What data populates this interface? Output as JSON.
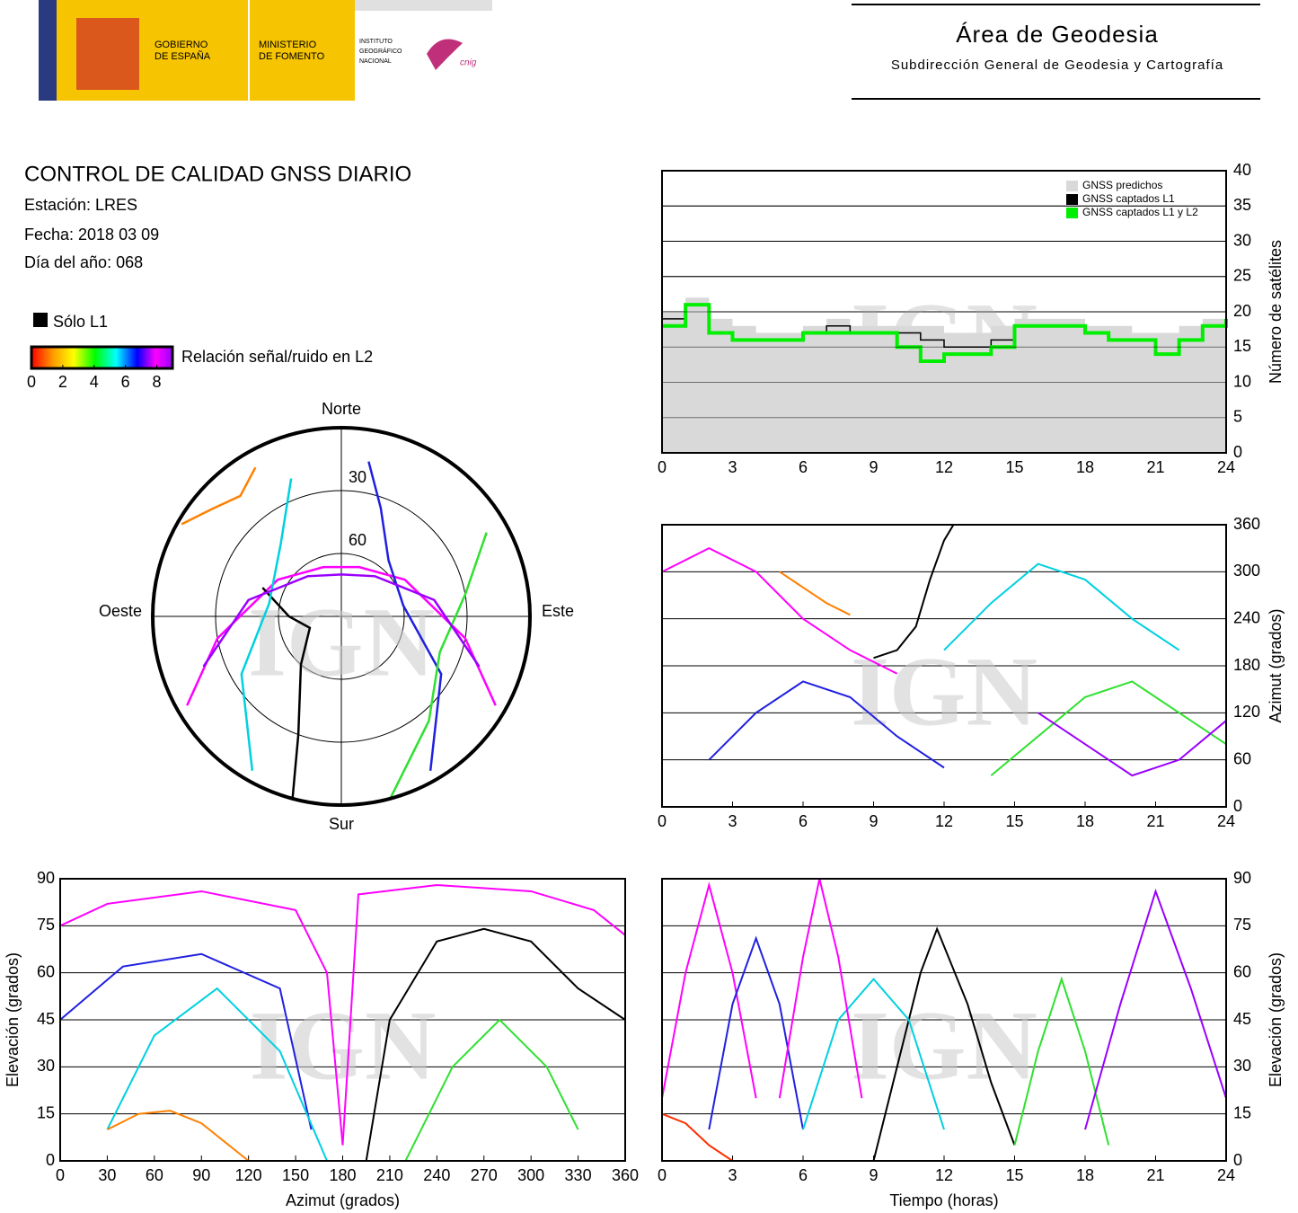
{
  "header": {
    "gobierno": [
      "GOBIERNO",
      "DE ESPAÑA"
    ],
    "ministerio": [
      "MINISTERIO",
      "DE FOMENTO"
    ],
    "instituto": [
      "INSTITUTO",
      "GEOGRÁFICO",
      "NACIONAL"
    ],
    "cnig": "cnig",
    "area": "Área de Geodesia",
    "subdireccion": "Subdirección General de Geodesia y Cartografía"
  },
  "report": {
    "title": "CONTROL DE CALIDAD GNSS DIARIO",
    "station": "Estación: LRES",
    "date": "Fecha: 2018 03 09",
    "doy": "Día del año: 068",
    "l1_only": "Sólo L1",
    "colorbar_label": "Relación señal/ruido en L2",
    "colorbar_range": [
      0,
      9
    ],
    "colorbar_ticks": [
      0,
      2,
      4,
      6,
      8
    ]
  },
  "watermark": "IGN",
  "chart_data": [
    {
      "type": "polar",
      "directions": {
        "north": "Norte",
        "south": "Sur",
        "east": "Este",
        "west": "Oeste"
      },
      "rings": [
        30,
        60
      ],
      "series": [
        {
          "color": "#ff00ff",
          "azimuth": [
            120,
            100,
            60,
            20,
            340,
            300,
            260,
            240
          ],
          "elevation": [
            5,
            30,
            55,
            65,
            65,
            55,
            30,
            5
          ]
        },
        {
          "color": "#000000",
          "azimuth": [
            195,
            200,
            220,
            250,
            270,
            290
          ],
          "elevation": [
            0,
            30,
            60,
            74,
            65,
            50
          ]
        },
        {
          "color": "#2020e0",
          "azimuth": [
            150,
            120,
            80,
            40,
            20,
            10
          ],
          "elevation": [
            5,
            35,
            60,
            55,
            35,
            15
          ]
        },
        {
          "color": "#00d0e0",
          "azimuth": [
            210,
            240,
            280,
            320,
            340
          ],
          "elevation": [
            5,
            35,
            55,
            45,
            20
          ]
        },
        {
          "color": "#30e030",
          "azimuth": [
            165,
            140,
            110,
            80,
            60
          ],
          "elevation": [
            0,
            25,
            40,
            30,
            10
          ]
        },
        {
          "color": "#ff8000",
          "azimuth": [
            300,
            310,
            320,
            330
          ],
          "elevation": [
            2,
            10,
            15,
            8
          ]
        },
        {
          "color": "#9900ff",
          "azimuth": [
            250,
            280,
            320,
            0,
            40,
            80,
            110
          ],
          "elevation": [
            20,
            45,
            65,
            70,
            65,
            45,
            20
          ]
        }
      ]
    },
    {
      "type": "step",
      "y_label": "Número de satélites",
      "x": [
        0,
        1,
        2,
        3,
        4,
        5,
        6,
        7,
        8,
        9,
        10,
        11,
        12,
        13,
        14,
        15,
        16,
        17,
        18,
        19,
        20,
        21,
        22,
        23,
        24
      ],
      "xlim": [
        0,
        24
      ],
      "xticks": [
        0,
        3,
        6,
        9,
        12,
        15,
        18,
        21,
        24
      ],
      "ylim": [
        0,
        40
      ],
      "yticks": [
        0,
        5,
        10,
        15,
        20,
        25,
        30,
        35,
        40
      ],
      "grid": true,
      "yaxis_side": "right",
      "legend": "top-right",
      "series": [
        {
          "name": "GNSS predichos",
          "color": "#d9d9d9",
          "fill": true,
          "values": [
            20,
            22,
            19,
            18,
            17,
            17,
            18,
            19,
            18,
            18,
            18,
            18,
            17,
            17,
            18,
            19,
            19,
            19,
            18,
            18,
            17,
            17,
            18,
            19,
            21
          ]
        },
        {
          "name": "GNSS captados L1",
          "color": "#000000",
          "values": [
            19,
            21,
            17,
            16,
            16,
            16,
            17,
            18,
            17,
            17,
            17,
            16,
            15,
            15,
            16,
            18,
            18,
            18,
            17,
            16,
            16,
            14,
            16,
            18,
            20
          ]
        },
        {
          "name": "GNSS captados L1 y L2",
          "color": "#00ee00",
          "values": [
            18,
            21,
            17,
            16,
            16,
            16,
            17,
            17,
            17,
            17,
            15,
            13,
            14,
            14,
            15,
            18,
            18,
            18,
            17,
            16,
            16,
            14,
            16,
            18,
            19
          ]
        }
      ]
    },
    {
      "type": "line",
      "y_label": "Azimut (grados)",
      "xlim": [
        0,
        24
      ],
      "xticks": [
        0,
        3,
        6,
        9,
        12,
        15,
        18,
        21,
        24
      ],
      "ylim": [
        0,
        360
      ],
      "yticks": [
        0,
        60,
        120,
        180,
        240,
        300,
        360
      ],
      "grid": true,
      "yaxis_side": "right",
      "series": [
        {
          "color": "#000000",
          "x": [
            9,
            10,
            10.8,
            11.4,
            12,
            12.4
          ],
          "values": [
            190,
            200,
            230,
            290,
            340,
            360
          ]
        },
        {
          "color": "#ff00ff",
          "x": [
            0,
            2,
            4,
            6,
            8,
            10
          ],
          "values": [
            300,
            330,
            300,
            240,
            200,
            170
          ]
        },
        {
          "color": "#2020e0",
          "x": [
            2,
            4,
            6,
            8,
            10,
            12
          ],
          "values": [
            60,
            120,
            160,
            140,
            90,
            50
          ]
        },
        {
          "color": "#00d0e0",
          "x": [
            12,
            14,
            16,
            18,
            20,
            22
          ],
          "values": [
            200,
            260,
            310,
            290,
            240,
            200
          ]
        },
        {
          "color": "#30e030",
          "x": [
            14,
            16,
            18,
            20,
            22,
            24
          ],
          "values": [
            40,
            90,
            140,
            160,
            120,
            80
          ]
        },
        {
          "color": "#9900ff",
          "x": [
            16,
            18,
            20,
            22,
            24
          ],
          "values": [
            120,
            80,
            40,
            60,
            110
          ]
        },
        {
          "color": "#ff8000",
          "x": [
            5,
            6,
            7,
            8
          ],
          "values": [
            300,
            280,
            260,
            245
          ]
        }
      ]
    },
    {
      "type": "line",
      "x_label": "Azimut (grados)",
      "y_label": "Elevación (grados)",
      "xlim": [
        0,
        360
      ],
      "xticks": [
        0,
        30,
        60,
        90,
        120,
        150,
        180,
        210,
        240,
        270,
        300,
        330,
        360
      ],
      "ylim": [
        0,
        90
      ],
      "yticks": [
        0,
        15,
        30,
        45,
        60,
        75,
        90
      ],
      "grid": true,
      "yaxis_side": "left",
      "series": [
        {
          "color": "#000000",
          "x": [
            195,
            210,
            240,
            270,
            300,
            330,
            360
          ],
          "values": [
            0,
            45,
            70,
            74,
            70,
            55,
            45
          ]
        },
        {
          "color": "#ff00ff",
          "x": [
            0,
            30,
            90,
            150,
            170,
            180
          ],
          "values": [
            75,
            82,
            86,
            80,
            60,
            5
          ]
        },
        {
          "color": "#ff00ff",
          "x": [
            180,
            190,
            240,
            300,
            340,
            360
          ],
          "values": [
            5,
            85,
            88,
            86,
            80,
            72
          ]
        },
        {
          "color": "#2020e0",
          "x": [
            0,
            40,
            90,
            140,
            160
          ],
          "values": [
            45,
            62,
            66,
            55,
            10
          ]
        },
        {
          "color": "#00d0e0",
          "x": [
            30,
            60,
            100,
            140,
            170
          ],
          "values": [
            10,
            40,
            55,
            35,
            0
          ]
        },
        {
          "color": "#30e030",
          "x": [
            220,
            250,
            280,
            310,
            330
          ],
          "values": [
            0,
            30,
            45,
            30,
            10
          ]
        },
        {
          "color": "#ff8000",
          "x": [
            30,
            50,
            70,
            90,
            120
          ],
          "values": [
            10,
            15,
            16,
            12,
            0
          ]
        }
      ]
    },
    {
      "type": "line",
      "x_label": "Tiempo (horas)",
      "y_label": "Elevación (grados)",
      "xlim": [
        0,
        24
      ],
      "xticks": [
        0,
        3,
        6,
        9,
        12,
        15,
        18,
        21,
        24
      ],
      "ylim": [
        0,
        90
      ],
      "yticks": [
        0,
        15,
        30,
        45,
        60,
        75,
        90
      ],
      "grid": true,
      "yaxis_side": "right",
      "series": [
        {
          "color": "#ff00ff",
          "x": [
            0,
            1,
            2,
            3,
            4
          ],
          "values": [
            20,
            60,
            88,
            60,
            20
          ]
        },
        {
          "color": "#000000",
          "x": [
            9,
            10,
            11,
            11.7,
            13,
            14,
            15
          ],
          "values": [
            0,
            30,
            60,
            74,
            50,
            25,
            5
          ]
        },
        {
          "color": "#2020e0",
          "x": [
            2,
            3,
            4,
            5,
            6
          ],
          "values": [
            10,
            50,
            71,
            50,
            10
          ]
        },
        {
          "color": "#30e030",
          "x": [
            15,
            16,
            17,
            18,
            19
          ],
          "values": [
            5,
            35,
            58,
            35,
            5
          ]
        },
        {
          "color": "#9900ff",
          "x": [
            18,
            19.5,
            21,
            22.5,
            24
          ],
          "values": [
            10,
            50,
            86,
            55,
            20
          ]
        },
        {
          "color": "#00d0e0",
          "x": [
            6,
            7.5,
            9,
            10.5,
            12
          ],
          "values": [
            10,
            45,
            58,
            45,
            10
          ]
        },
        {
          "color": "#ff3000",
          "x": [
            0,
            1,
            2,
            3
          ],
          "values": [
            15,
            12,
            5,
            0
          ]
        },
        {
          "color": "#ff00ff",
          "x": [
            5,
            6,
            6.7,
            7.5,
            8.5
          ],
          "values": [
            20,
            65,
            90,
            65,
            20
          ]
        }
      ]
    }
  ]
}
